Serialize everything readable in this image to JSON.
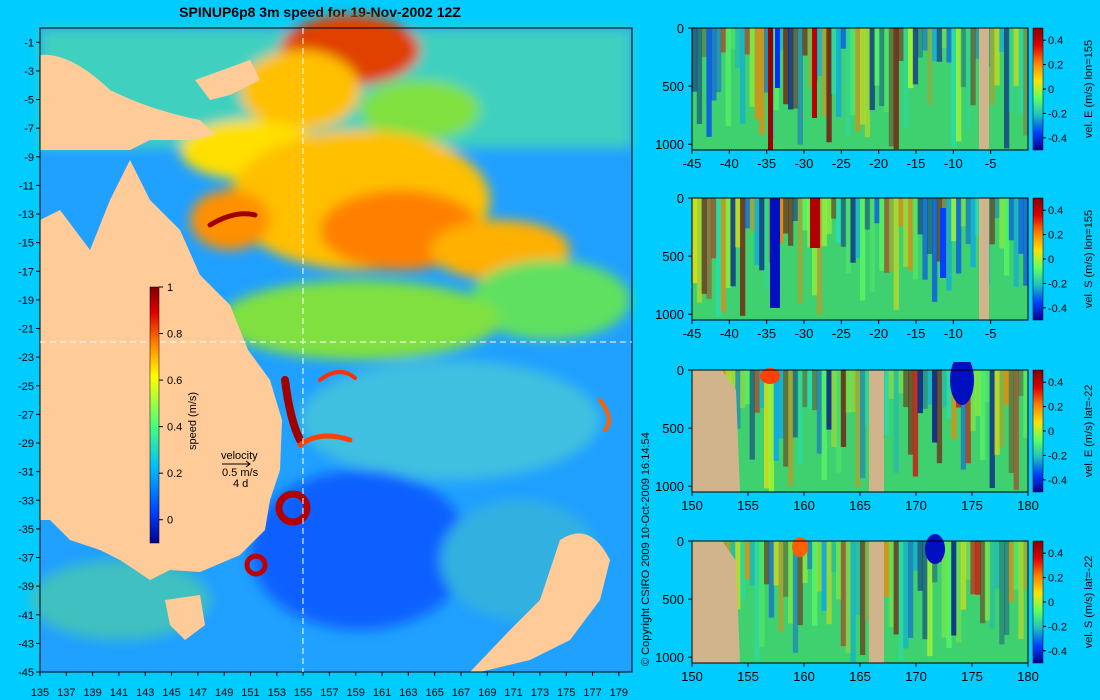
{
  "title": "SPINUP6p8 3m speed for 19-Nov-2002 12Z",
  "copyright": "© Copyright CSIRO 2009  10-Oct-2009 16:14:54",
  "colors": {
    "background": "#00ccff",
    "land": "#ffcc99",
    "section_land": "#d2b48c",
    "crosshair": "#ffffff"
  },
  "chart_data": [
    {
      "type": "heatmap",
      "title": "SPINUP6p8 3m speed for 19-Nov-2002 12Z",
      "x_ticks": [
        "135",
        "137",
        "139",
        "141",
        "143",
        "145",
        "147",
        "149",
        "151",
        "153",
        "155",
        "157",
        "159",
        "161",
        "163",
        "165",
        "167",
        "169",
        "171",
        "173",
        "175",
        "177",
        "179"
      ],
      "y_ticks": [
        "-1",
        "-3",
        "-5",
        "-7",
        "-9",
        "-11",
        "-13",
        "-15",
        "-17",
        "-19",
        "-21",
        "-23",
        "-25",
        "-27",
        "-29",
        "-31",
        "-33",
        "-35",
        "-37",
        "-39",
        "-41",
        "-43",
        "-45"
      ],
      "xlim": [
        135,
        180
      ],
      "ylim": [
        -45,
        0
      ],
      "crosshair": {
        "lon": 155,
        "lat": -22
      },
      "colorbar": {
        "label": "speed (m/s)",
        "ticks": [
          "0",
          "0.2",
          "0.4",
          "0.6",
          "0.8",
          "1"
        ],
        "range": [
          -0.1,
          1
        ]
      },
      "velocity_key": {
        "title": "velocity",
        "speed": "0.5 m/s",
        "duration": "4 d"
      }
    },
    {
      "type": "heatmap",
      "x_ticks": [
        "-45",
        "-40",
        "-35",
        "-30",
        "-25",
        "-20",
        "-15",
        "-10",
        "-5"
      ],
      "y_ticks": [
        "0",
        "500",
        "1000"
      ],
      "xlim": [
        -45,
        0
      ],
      "ylim": [
        1050,
        0
      ],
      "colorbar": {
        "label": "vel. E (m/s) lon=155",
        "ticks": [
          "0.4",
          "0.2",
          "0",
          "-0.2",
          "-0.4"
        ]
      }
    },
    {
      "type": "heatmap",
      "x_ticks": [
        "-45",
        "-40",
        "-35",
        "-30",
        "-25",
        "-20",
        "-15",
        "-10",
        "-5"
      ],
      "y_ticks": [
        "0",
        "500",
        "1000"
      ],
      "xlim": [
        -45,
        0
      ],
      "ylim": [
        1050,
        0
      ],
      "colorbar": {
        "label": "vel. S (m/s) lon=155",
        "ticks": [
          "0.4",
          "0.2",
          "0",
          "-0.2",
          "-0.4"
        ]
      }
    },
    {
      "type": "heatmap",
      "x_ticks": [
        "150",
        "155",
        "160",
        "165",
        "170",
        "175",
        "180"
      ],
      "y_ticks": [
        "0",
        "500",
        "1000"
      ],
      "xlim": [
        150,
        180
      ],
      "ylim": [
        1050,
        0
      ],
      "colorbar": {
        "label": "vel. E (m/s) lat=-22",
        "ticks": [
          "0.4",
          "0.2",
          "0",
          "-0.2",
          "-0.4"
        ]
      }
    },
    {
      "type": "heatmap",
      "x_ticks": [
        "150",
        "155",
        "160",
        "165",
        "170",
        "175",
        "180"
      ],
      "y_ticks": [
        "0",
        "500",
        "1000"
      ],
      "xlim": [
        150,
        180
      ],
      "ylim": [
        1050,
        0
      ],
      "colorbar": {
        "label": "vel. S (m/s) lat=-22",
        "ticks": [
          "0.4",
          "0.2",
          "0",
          "-0.2",
          "-0.4"
        ]
      }
    }
  ]
}
